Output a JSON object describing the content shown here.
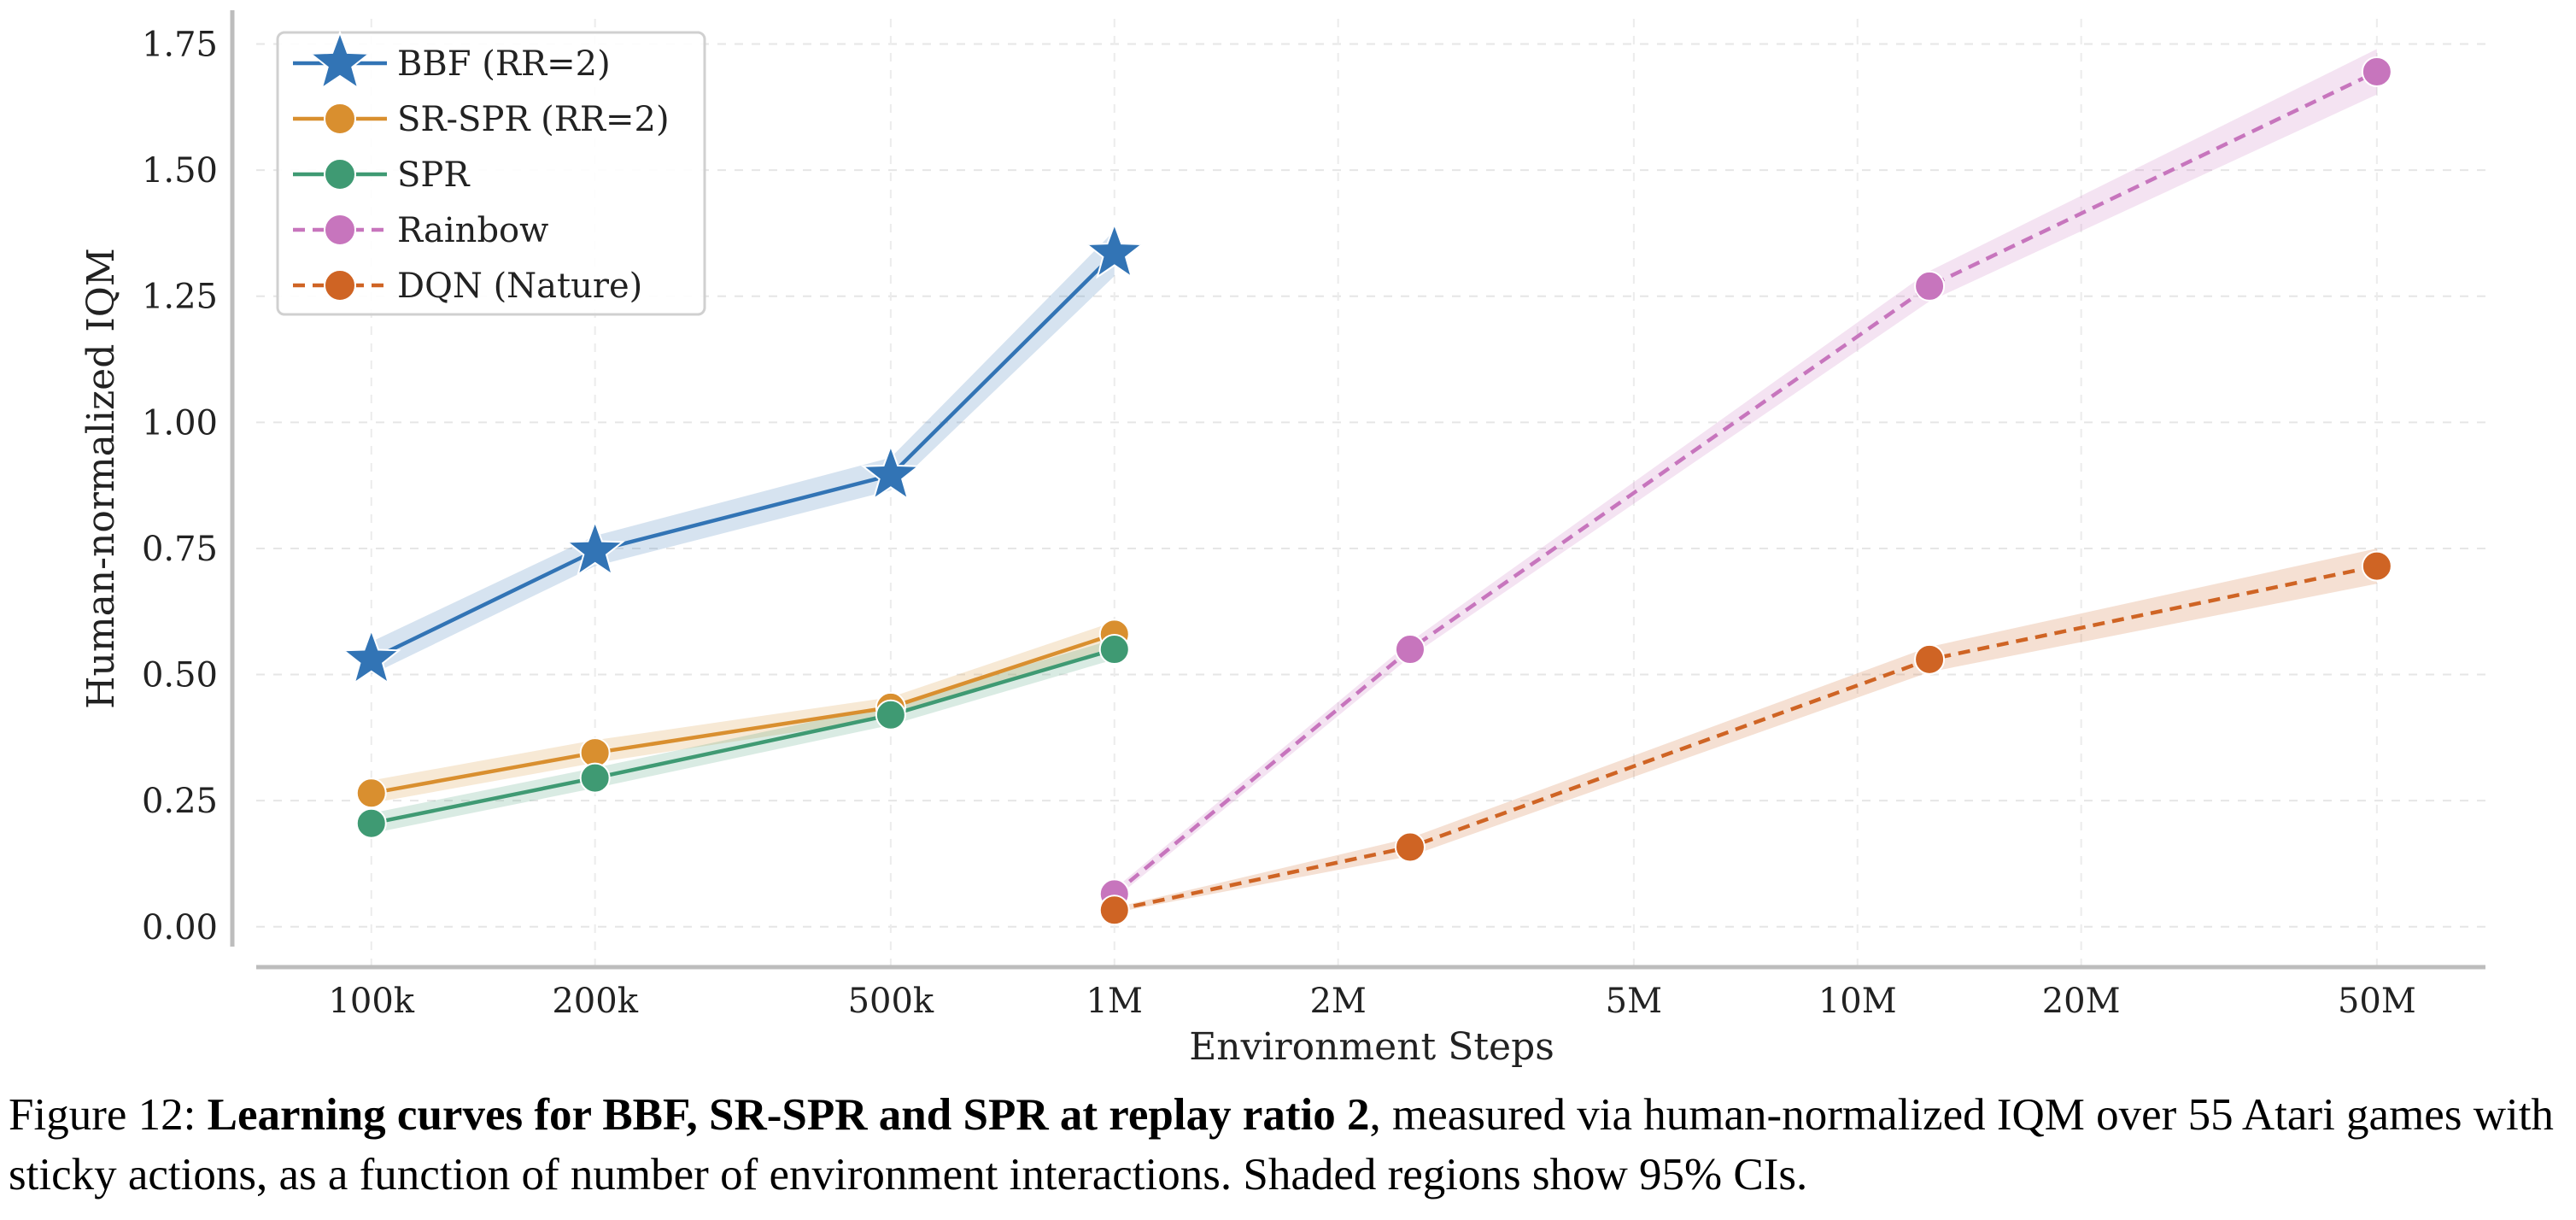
{
  "chart_data": {
    "type": "line",
    "xlabel": "Environment Steps",
    "ylabel": "Human-normalized IQM",
    "x_scale": "log",
    "xlim": [
      70000,
      70000000
    ],
    "ylim": [
      -0.08,
      1.8
    ],
    "x_ticks": [
      {
        "value": 100000,
        "label": "100k"
      },
      {
        "value": 200000,
        "label": "200k"
      },
      {
        "value": 500000,
        "label": "500k"
      },
      {
        "value": 1000000,
        "label": "1M"
      },
      {
        "value": 2000000,
        "label": "2M"
      },
      {
        "value": 5000000,
        "label": "5M"
      },
      {
        "value": 10000000,
        "label": "10M"
      },
      {
        "value": 20000000,
        "label": "20M"
      },
      {
        "value": 50000000,
        "label": "50M"
      }
    ],
    "y_ticks": [
      {
        "value": 0.0,
        "label": "0.00"
      },
      {
        "value": 0.25,
        "label": "0.25"
      },
      {
        "value": 0.5,
        "label": "0.50"
      },
      {
        "value": 0.75,
        "label": "0.75"
      },
      {
        "value": 1.0,
        "label": "1.00"
      },
      {
        "value": 1.25,
        "label": "1.25"
      },
      {
        "value": 1.5,
        "label": "1.50"
      },
      {
        "value": 1.75,
        "label": "1.75"
      }
    ],
    "grid": true,
    "legend_position": "top-left",
    "series": [
      {
        "name": "BBF (RR=2)",
        "color": "#3274b5",
        "marker": "star",
        "dashed": false,
        "x": [
          100000,
          200000,
          500000,
          1000000
        ],
        "y": [
          0.53,
          0.745,
          0.895,
          1.335
        ],
        "ci_low": [
          0.5,
          0.715,
          0.865,
          1.29
        ],
        "ci_high": [
          0.565,
          0.775,
          0.93,
          1.38
        ]
      },
      {
        "name": "SR-SPR (RR=2)",
        "color": "#d98f2f",
        "marker": "circle",
        "dashed": false,
        "x": [
          100000,
          200000,
          500000,
          1000000
        ],
        "y": [
          0.265,
          0.345,
          0.435,
          0.58
        ],
        "ci_low": [
          0.245,
          0.325,
          0.415,
          0.555
        ],
        "ci_high": [
          0.29,
          0.37,
          0.455,
          0.605
        ]
      },
      {
        "name": "SPR",
        "color": "#3f9a73",
        "marker": "circle",
        "dashed": false,
        "x": [
          100000,
          200000,
          500000,
          1000000
        ],
        "y": [
          0.205,
          0.295,
          0.42,
          0.55
        ],
        "ci_low": [
          0.185,
          0.275,
          0.4,
          0.53
        ],
        "ci_high": [
          0.225,
          0.315,
          0.44,
          0.57
        ]
      },
      {
        "name": "Rainbow",
        "color": "#c775bd",
        "marker": "circle",
        "dashed": true,
        "x": [
          1000000,
          2500000,
          12500000,
          50000000
        ],
        "y": [
          0.065,
          0.55,
          1.27,
          1.695
        ],
        "ci_low": [
          0.055,
          0.535,
          1.24,
          1.65
        ],
        "ci_high": [
          0.075,
          0.565,
          1.3,
          1.74
        ]
      },
      {
        "name": "DQN (Nature)",
        "color": "#cf6424",
        "marker": "circle",
        "dashed": true,
        "x": [
          1000000,
          2500000,
          12500000,
          50000000
        ],
        "y": [
          0.033,
          0.158,
          0.53,
          0.715
        ],
        "ci_low": [
          0.028,
          0.14,
          0.505,
          0.68
        ],
        "ci_high": [
          0.038,
          0.176,
          0.555,
          0.75
        ]
      }
    ]
  },
  "caption": {
    "prefix": "Figure 12: ",
    "bold": "Learning curves for BBF, SR-SPR and SPR at replay ratio 2",
    "rest": ", measured via human-normalized IQM over 55 Atari games with sticky actions, as a function of number of environment interactions. Shaded regions show 95% CIs."
  }
}
